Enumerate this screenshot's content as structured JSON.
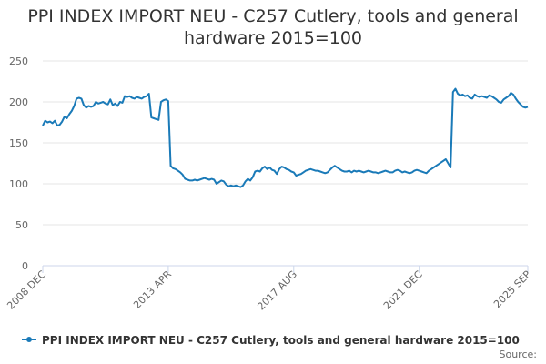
{
  "chart_data": {
    "type": "line",
    "title": "PPI INDEX IMPORT NEU - C257 Cutlery, tools and general hardware 2015=100",
    "source": "Source:",
    "categories": [
      "2008 DEC",
      null,
      null,
      null,
      null,
      null,
      null,
      null,
      null,
      null,
      null,
      null,
      null,
      null,
      null,
      null,
      null,
      null,
      null,
      null,
      null,
      null,
      null,
      null,
      null,
      null,
      null,
      null,
      null,
      null,
      null,
      null,
      null,
      null,
      null,
      null,
      null,
      null,
      null,
      null,
      null,
      null,
      null,
      null,
      null,
      null,
      null,
      null,
      null,
      null,
      null,
      null,
      "2013 APR",
      null,
      null,
      null,
      null,
      null,
      null,
      null,
      null,
      null,
      null,
      null,
      null,
      null,
      null,
      null,
      null,
      null,
      null,
      null,
      null,
      null,
      null,
      null,
      null,
      null,
      null,
      null,
      null,
      null,
      null,
      null,
      null,
      null,
      null,
      null,
      null,
      null,
      null,
      null,
      null,
      null,
      null,
      null,
      null,
      null,
      null,
      null,
      null,
      null,
      null,
      null,
      "2017 AUG",
      null,
      null,
      null,
      null,
      null,
      null,
      null,
      null,
      null,
      null,
      null,
      null,
      null,
      null,
      null,
      null,
      null,
      null,
      null,
      null,
      null,
      null,
      null,
      null,
      null,
      null,
      null,
      null,
      null,
      null,
      null,
      null,
      null,
      null,
      null,
      null,
      null,
      null,
      null,
      null,
      null,
      null,
      null,
      null,
      null,
      null,
      null,
      null,
      null,
      null,
      null,
      "2021 DEC",
      null,
      null,
      null,
      null,
      null,
      null,
      null,
      null,
      null,
      null,
      null,
      null,
      null,
      null,
      null,
      null,
      null,
      null,
      null,
      null,
      null,
      null,
      null,
      null,
      null,
      null,
      null,
      null,
      null,
      null,
      null,
      null,
      null,
      null,
      null,
      null,
      null,
      null,
      null,
      null,
      null,
      null,
      null,
      null,
      "2025 SEP"
    ],
    "series": [
      {
        "name": "PPI INDEX IMPORT NEU - C257 Cutlery, tools and general hardware 2015=100",
        "color": "#1a7ab8",
        "values": [
          171,
          177,
          175,
          176,
          174,
          177,
          171,
          172,
          176,
          182,
          180,
          185,
          189,
          195,
          204,
          205,
          204,
          196,
          193,
          195,
          194,
          195,
          200,
          198,
          199,
          200,
          198,
          197,
          203,
          196,
          198,
          195,
          200,
          199,
          207,
          206,
          207,
          205,
          204,
          206,
          205,
          204,
          206,
          207,
          210,
          181,
          180,
          179,
          178,
          200,
          202,
          203,
          201,
          122,
          119,
          118,
          116,
          114,
          111,
          106,
          105,
          104,
          104,
          105,
          104,
          105,
          106,
          107,
          106,
          105,
          106,
          105,
          100,
          102,
          104,
          103,
          99,
          97,
          98,
          97,
          98,
          97,
          96,
          98,
          103,
          106,
          104,
          108,
          115,
          116,
          115,
          119,
          121,
          118,
          120,
          117,
          116,
          112,
          118,
          121,
          120,
          118,
          117,
          115,
          114,
          110,
          111,
          112,
          114,
          116,
          117,
          118,
          117,
          116,
          116,
          115,
          114,
          113,
          114,
          117,
          120,
          122,
          120,
          118,
          116,
          115,
          115,
          116,
          114,
          116,
          115,
          116,
          115,
          114,
          115,
          116,
          115,
          114,
          114,
          113,
          114,
          115,
          116,
          115,
          114,
          114,
          116,
          117,
          116,
          114,
          115,
          114,
          113,
          114,
          116,
          117,
          116,
          115,
          114,
          113,
          116,
          118,
          120,
          122,
          124,
          126,
          128,
          130,
          125,
          120,
          212,
          216,
          210,
          208,
          209,
          207,
          208,
          205,
          204,
          209,
          207,
          206,
          207,
          206,
          205,
          208,
          207,
          205,
          203,
          200,
          199,
          203,
          205,
          207,
          211,
          209,
          204,
          200,
          197,
          194,
          193,
          194
        ]
      }
    ],
    "ylim": [
      0,
      250
    ],
    "yticks": [
      0,
      50,
      100,
      150,
      200,
      250
    ],
    "grid": true
  }
}
